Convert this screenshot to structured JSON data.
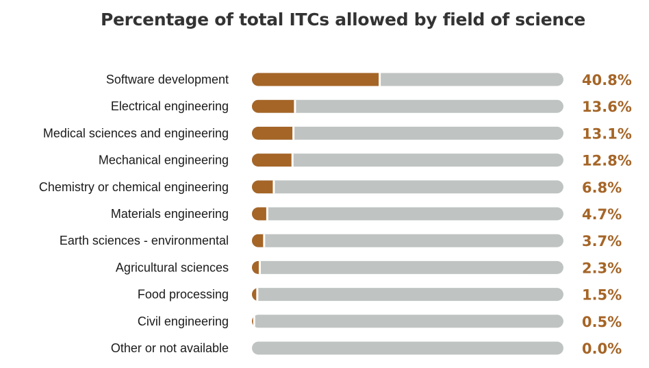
{
  "chart_data": {
    "type": "bar",
    "orientation": "horizontal",
    "title": "Percentage of total ITCs allowed by field of science",
    "xlabel": "",
    "ylabel": "",
    "xlim": [
      0,
      100
    ],
    "grid": false,
    "legend": "none",
    "categories": [
      "Software development",
      "Electrical engineering",
      "Medical sciences and engineering",
      "Mechanical engineering",
      "Chemistry or chemical engineering",
      "Materials engineering",
      "Earth sciences - environmental",
      "Agricultural sciences",
      "Food processing",
      "Civil engineering",
      "Other or not available"
    ],
    "values": [
      40.8,
      13.6,
      13.1,
      12.8,
      6.8,
      4.7,
      3.7,
      2.3,
      1.5,
      0.5,
      0.0
    ],
    "value_labels": [
      "40.8%",
      "13.6%",
      "13.1%",
      "12.8%",
      "6.8%",
      "4.7%",
      "3.7%",
      "2.3%",
      "1.5%",
      "0.5%",
      "0.0%"
    ],
    "colors": {
      "bar": "#a56527",
      "track": "#bfc4c2",
      "value_text": "#a56527",
      "label_text": "#1a1a1a",
      "title_text": "#333333"
    }
  }
}
